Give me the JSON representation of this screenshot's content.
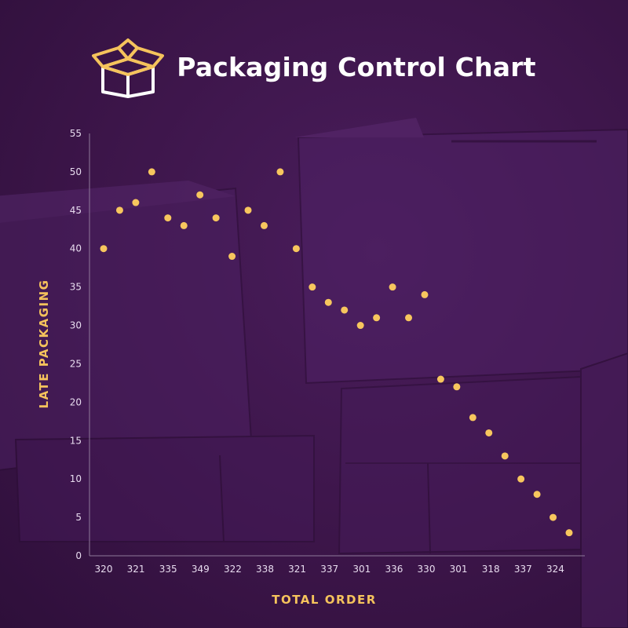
{
  "header": {
    "title": "Packaging Control Chart",
    "icon": "open-box-icon"
  },
  "colors": {
    "background": "#3c1549",
    "points": "#f7c65e",
    "icon": "#f5c35c",
    "title": "#ffffff",
    "axis": "#8f7a9a"
  },
  "chart_data": {
    "type": "scatter",
    "title": "Packaging Control Chart",
    "xlabel": "TOTAL ORDER",
    "ylabel": "LATE PACKAGING",
    "ylim": [
      0,
      55
    ],
    "y_ticks": [
      0,
      5,
      10,
      15,
      20,
      25,
      30,
      35,
      40,
      45,
      50,
      55
    ],
    "x_tick_labels": [
      "320",
      "321",
      "335",
      "349",
      "322",
      "338",
      "321",
      "337",
      "301",
      "336",
      "330",
      "301",
      "318",
      "337",
      "324"
    ],
    "grid": false,
    "series": [
      {
        "values": [
          40,
          45,
          46,
          50,
          44,
          43,
          47,
          44,
          39,
          45,
          43,
          50,
          40,
          35,
          33,
          32,
          30,
          31,
          35,
          31,
          34,
          23,
          22,
          18,
          16,
          13,
          10,
          8,
          5,
          3
        ]
      }
    ]
  }
}
